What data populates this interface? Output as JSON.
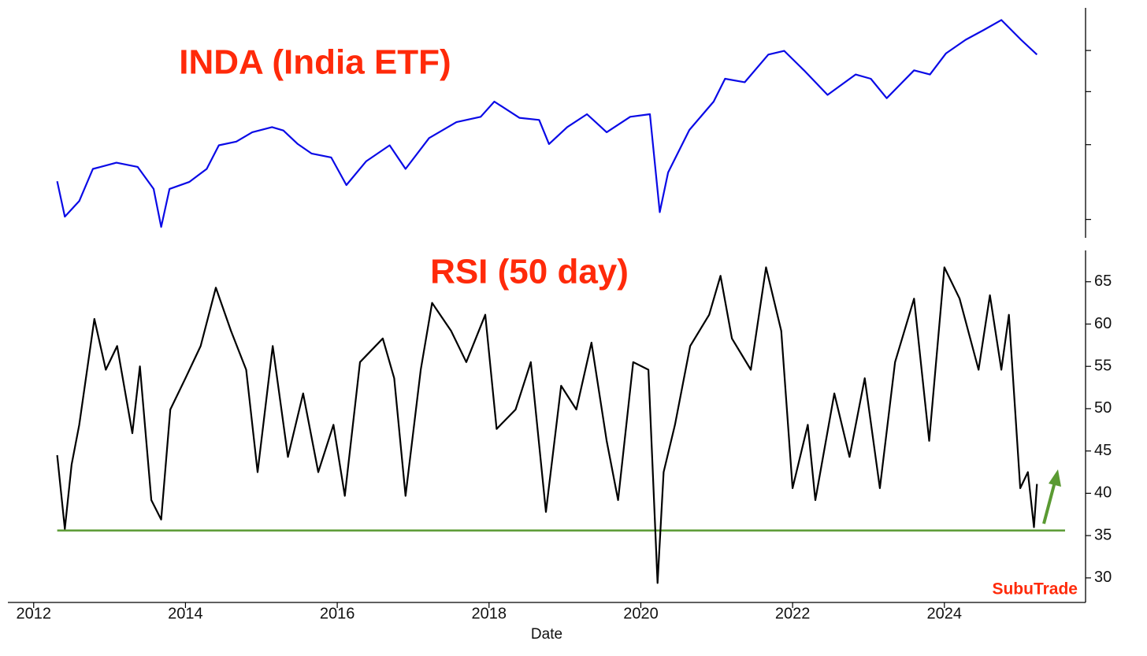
{
  "chart_data": [
    {
      "type": "line",
      "title": "INDA (India ETF)",
      "log_scale": true,
      "tick_labels": false,
      "xlim": [
        2011.66,
        2025.86
      ],
      "ylim": [
        18.1,
        63
      ],
      "yticks": [
        20,
        30,
        40,
        50
      ],
      "series": [
        {
          "name": "INDA",
          "color": "#0a0ae6",
          "x": [
            2012.31,
            2012.41,
            2012.6,
            2012.78,
            2013.09,
            2013.37,
            2013.58,
            2013.68,
            2013.79,
            2014.05,
            2014.28,
            2014.44,
            2014.67,
            2014.88,
            2015.14,
            2015.29,
            2015.48,
            2015.66,
            2015.92,
            2016.12,
            2016.38,
            2016.69,
            2016.9,
            2017.21,
            2017.57,
            2017.89,
            2018.07,
            2018.4,
            2018.66,
            2018.79,
            2019.03,
            2019.29,
            2019.55,
            2019.86,
            2020.12,
            2020.25,
            2020.36,
            2020.64,
            2020.96,
            2021.11,
            2021.37,
            2021.68,
            2021.89,
            2022.15,
            2022.46,
            2022.83,
            2023.03,
            2023.24,
            2023.6,
            2023.81,
            2024.02,
            2024.28,
            2024.52,
            2024.75,
            2025.01,
            2025.22
          ],
          "values": [
            24.6,
            20.3,
            22.1,
            26.3,
            27.2,
            26.6,
            23.6,
            19.2,
            23.6,
            24.5,
            26.3,
            29.9,
            30.5,
            32.1,
            33.0,
            32.4,
            30.1,
            28.6,
            28.0,
            24.1,
            27.4,
            29.9,
            26.3,
            31.1,
            33.9,
            34.9,
            37.9,
            34.7,
            34.3,
            30.1,
            33.0,
            35.4,
            32.1,
            34.9,
            35.4,
            20.8,
            25.8,
            32.5,
            37.9,
            42.9,
            42.1,
            48.9,
            49.9,
            44.9,
            39.3,
            43.9,
            42.9,
            38.6,
            44.9,
            43.9,
            49.2,
            53.0,
            55.9,
            59.0,
            53.0,
            48.9
          ]
        }
      ]
    },
    {
      "type": "line",
      "title": "RSI (50 day)",
      "x_label": "Date",
      "watermark": "SubuTrade",
      "xlim": [
        2011.66,
        2025.86
      ],
      "xticks": [
        2012,
        2014,
        2016,
        2018,
        2020,
        2022,
        2024
      ],
      "ylim": [
        27.1,
        68.7
      ],
      "yticks": [
        30,
        35,
        40,
        45,
        50,
        55,
        60,
        65
      ],
      "hline": {
        "value": 35.6,
        "xlim": [
          2012.31,
          2025.59
        ],
        "color": "#5a9a32"
      },
      "series": [
        {
          "name": "RSI",
          "color": "#000000",
          "x": [
            2012.31,
            2012.41,
            2012.5,
            2012.6,
            2012.8,
            2012.95,
            2013.1,
            2013.3,
            2013.4,
            2013.55,
            2013.68,
            2013.8,
            2014.0,
            2014.2,
            2014.4,
            2014.6,
            2014.8,
            2014.95,
            2015.15,
            2015.35,
            2015.55,
            2015.75,
            2015.95,
            2016.1,
            2016.3,
            2016.6,
            2016.75,
            2016.9,
            2017.1,
            2017.25,
            2017.5,
            2017.7,
            2017.95,
            2018.1,
            2018.35,
            2018.55,
            2018.75,
            2018.95,
            2019.15,
            2019.35,
            2019.55,
            2019.7,
            2019.9,
            2020.1,
            2020.22,
            2020.3,
            2020.45,
            2020.65,
            2020.9,
            2021.05,
            2021.2,
            2021.45,
            2021.65,
            2021.85,
            2022.0,
            2022.2,
            2022.3,
            2022.55,
            2022.75,
            2022.95,
            2023.15,
            2023.35,
            2023.6,
            2023.8,
            2024.0,
            2024.2,
            2024.45,
            2024.6,
            2024.75,
            2024.85,
            2025.0,
            2025.1,
            2025.18,
            2025.22
          ],
          "values": [
            44.5,
            35.8,
            43.4,
            48.1,
            60.6,
            54.6,
            57.4,
            47.1,
            55.0,
            39.2,
            36.9,
            49.9,
            53.6,
            57.4,
            64.3,
            59.2,
            54.6,
            42.5,
            57.4,
            44.3,
            51.8,
            42.5,
            48.1,
            39.7,
            55.5,
            58.3,
            53.6,
            39.7,
            54.6,
            62.5,
            59.2,
            55.5,
            61.1,
            47.6,
            49.9,
            55.5,
            37.8,
            52.7,
            49.9,
            57.8,
            46.2,
            39.2,
            55.5,
            54.6,
            29.4,
            42.5,
            48.1,
            57.4,
            61.1,
            65.7,
            58.3,
            54.6,
            66.7,
            59.2,
            40.6,
            48.1,
            39.2,
            51.8,
            44.3,
            53.6,
            40.6,
            55.5,
            63.0,
            46.2,
            66.7,
            63.0,
            54.6,
            63.4,
            54.6,
            61.1,
            40.6,
            42.5,
            36.0,
            41.1
          ]
        }
      ]
    }
  ]
}
